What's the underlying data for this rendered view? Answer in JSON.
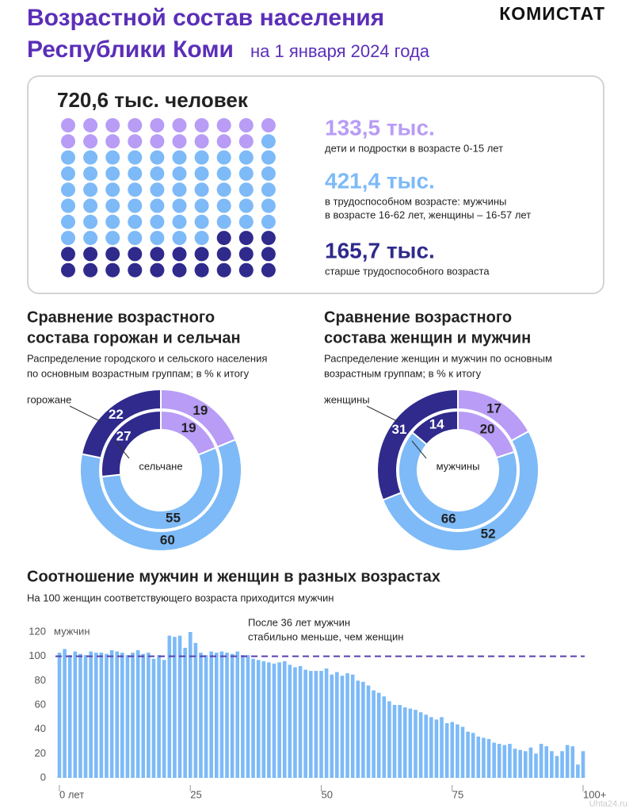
{
  "header": {
    "title_lines": [
      "Возрастной состав населения",
      "Республики Коми"
    ],
    "subtitle": "на 1 января 2024 года",
    "brand": "КОМИСТАТ"
  },
  "summary": {
    "total": "720,6 тыс. человек",
    "groups": [
      {
        "value_label": "133,5 тыс.",
        "description_lines": [
          "дети и подростки в возрасте 0-15 лет"
        ],
        "color": "#b89cf5",
        "dots": 19
      },
      {
        "value_label": "421,4 тыс.",
        "description_lines": [
          "в трудоспособном возрасте: мужчины",
          "в возрасте 16-62 лет, женщины – 16-57 лет"
        ],
        "color": "#7dbaf7",
        "dots": 58
      },
      {
        "value_label": "165,7 тыс.",
        "description_lines": [
          "старше трудоспособного возраста"
        ],
        "color": "#2f2a8c",
        "dots": 23
      }
    ]
  },
  "chart_data": [
    {
      "type": "donut",
      "title_lines": [
        "Сравнение возрастного",
        "состава горожан и сельчан"
      ],
      "subtitle_lines": [
        "Распределение городского и сельского населения",
        "по основным возрастным группам; в % к итогу"
      ],
      "colors": [
        "#b89cf5",
        "#7dbaf7",
        "#2f2a8c"
      ],
      "series": [
        {
          "name": "горожане",
          "values": [
            19,
            60,
            22
          ]
        },
        {
          "name": "сельчане",
          "values": [
            19,
            55,
            27
          ]
        }
      ]
    },
    {
      "type": "donut",
      "title_lines": [
        "Сравнение возрастного",
        "состава женщин и мужчин"
      ],
      "subtitle_lines": [
        "Распределение женщин и мужчин по основным",
        "возрастным группам; в % к итогу"
      ],
      "colors": [
        "#b89cf5",
        "#7dbaf7",
        "#2f2a8c"
      ],
      "series": [
        {
          "name": "женщины",
          "values": [
            17,
            52,
            31
          ]
        },
        {
          "name": "мужчины",
          "values": [
            20,
            66,
            14
          ]
        }
      ]
    },
    {
      "type": "bar",
      "title": "Соотношение мужчин и женщин в разных возрастах",
      "subtitle": "На 100 женщин соответствующего возраста приходится мужчин",
      "ylabel": "мужчин",
      "annotation_lines": [
        "После 36 лет мужчин",
        "стабильно меньше, чем женщин"
      ],
      "reference_line": 100,
      "color": "#7dbaf7",
      "x": [
        0,
        1,
        2,
        3,
        4,
        5,
        6,
        7,
        8,
        9,
        10,
        11,
        12,
        13,
        14,
        15,
        16,
        17,
        18,
        19,
        20,
        21,
        22,
        23,
        24,
        25,
        26,
        27,
        28,
        29,
        30,
        31,
        32,
        33,
        34,
        35,
        36,
        37,
        38,
        39,
        40,
        41,
        42,
        43,
        44,
        45,
        46,
        47,
        48,
        49,
        50,
        51,
        52,
        53,
        54,
        55,
        56,
        57,
        58,
        59,
        60,
        61,
        62,
        63,
        64,
        65,
        66,
        67,
        68,
        69,
        70,
        71,
        72,
        73,
        74,
        75,
        76,
        77,
        78,
        79,
        80,
        81,
        82,
        83,
        84,
        85,
        86,
        87,
        88,
        89,
        90,
        91,
        92,
        93,
        94,
        95,
        96,
        97,
        98,
        99,
        100
      ],
      "values": [
        103,
        106,
        101,
        104,
        102,
        101,
        104,
        103,
        103,
        102,
        105,
        104,
        103,
        101,
        103,
        105,
        102,
        103,
        98,
        101,
        97,
        117,
        116,
        117,
        107,
        120,
        111,
        103,
        101,
        104,
        103,
        104,
        103,
        102,
        104,
        101,
        101,
        98,
        97,
        96,
        95,
        94,
        95,
        96,
        93,
        91,
        92,
        89,
        88,
        88,
        88,
        90,
        85,
        87,
        84,
        86,
        85,
        80,
        79,
        76,
        72,
        70,
        67,
        63,
        60,
        60,
        58,
        57,
        56,
        54,
        52,
        50,
        48,
        50,
        45,
        46,
        44,
        42,
        38,
        37,
        34,
        33,
        32,
        29,
        28,
        27,
        28,
        24,
        23,
        22,
        25,
        20,
        28,
        26,
        22,
        18,
        22,
        27,
        26,
        11,
        22
      ],
      "xlim": [
        0,
        100
      ],
      "xticks": [
        {
          "value": 0,
          "label": "0 лет"
        },
        25,
        50,
        75,
        {
          "value": 100,
          "label": "100+"
        }
      ],
      "ylim": [
        0,
        120
      ],
      "yticks": [
        0,
        20,
        40,
        60,
        80,
        100,
        120
      ]
    }
  ],
  "watermark": "Uhta24.ru"
}
